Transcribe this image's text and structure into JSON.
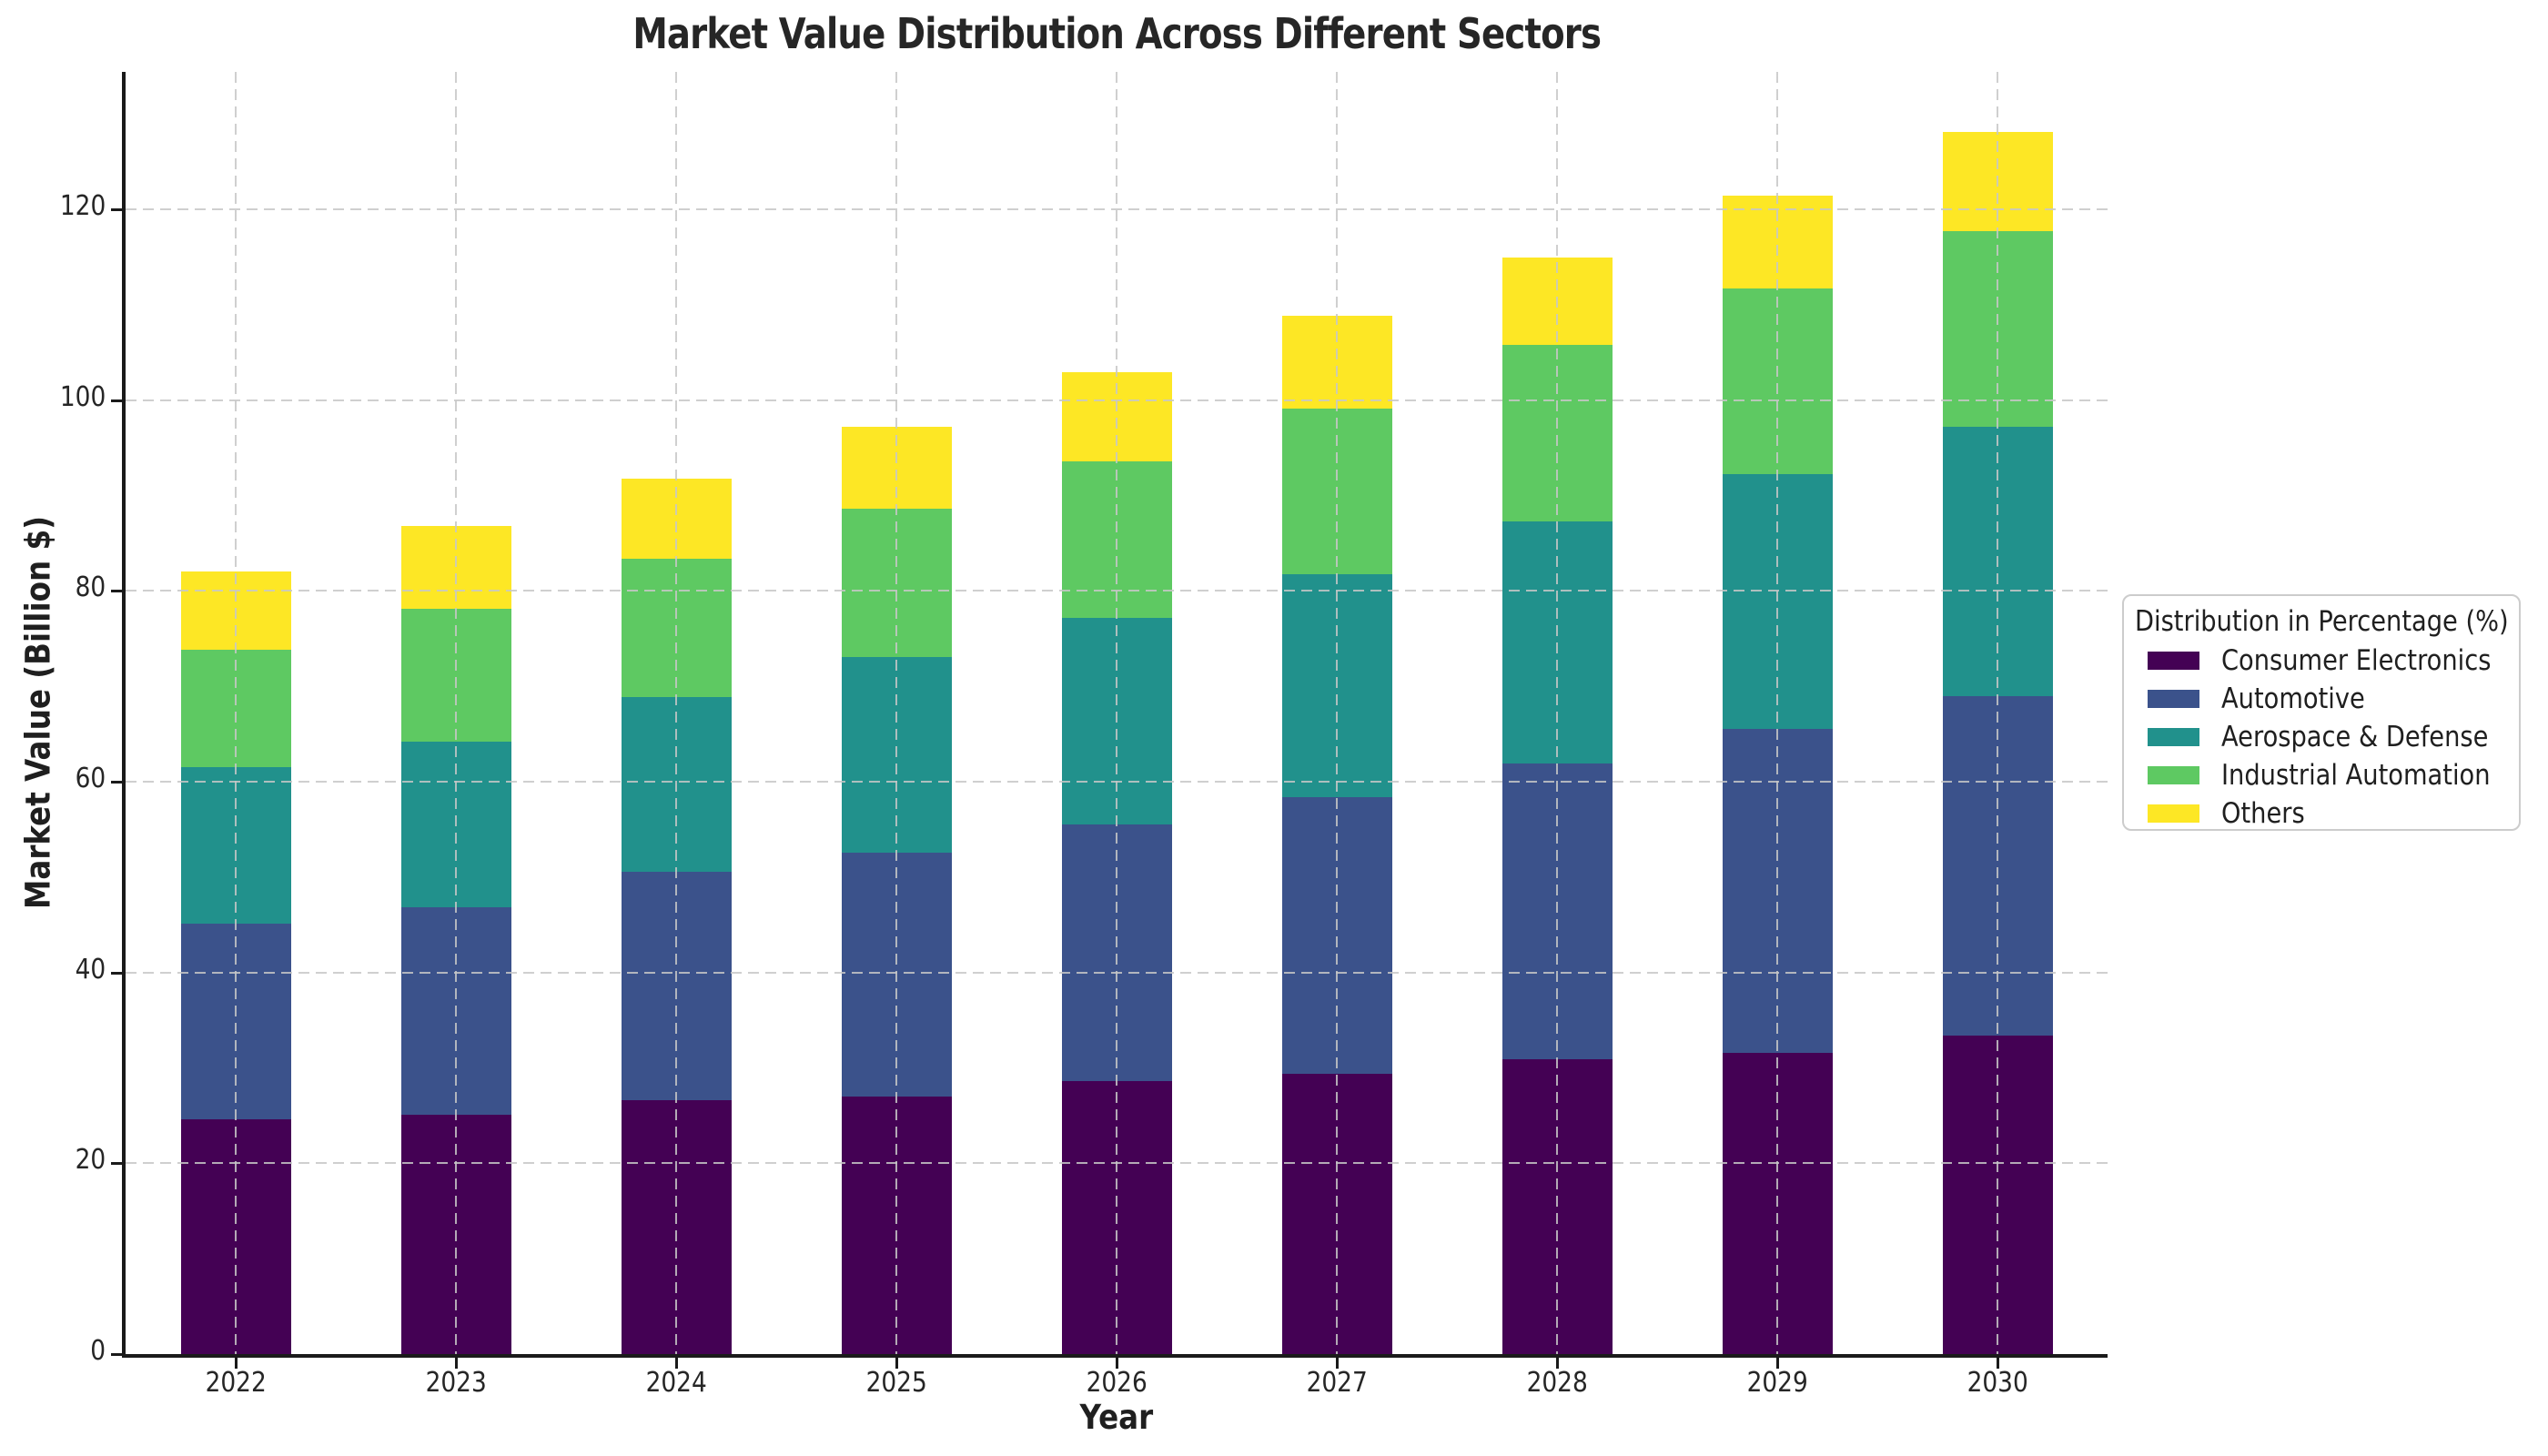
{
  "figure_title": "Market Value Distribution Across Different Sectors",
  "legend": {
    "title": "Distribution in Percentage (%)"
  },
  "chart_data": {
    "type": "bar",
    "stacked": true,
    "title": "Market Value Distribution Across Different Sectors",
    "xlabel": "Year",
    "ylabel": "Market Value (Billion $)",
    "categories": [
      "2022",
      "2023",
      "2024",
      "2025",
      "2026",
      "2027",
      "2028",
      "2029",
      "2030"
    ],
    "series": [
      {
        "name": "Consumer Electronics",
        "color": "#440154",
        "values": [
          24.6,
          25.1,
          26.6,
          27.0,
          28.6,
          29.4,
          30.9,
          31.6,
          33.4
        ]
      },
      {
        "name": "Automotive",
        "color": "#3b528b",
        "values": [
          20.5,
          21.7,
          24.0,
          25.6,
          26.9,
          29.0,
          31.0,
          33.9,
          35.6
        ]
      },
      {
        "name": "Aerospace & Defense",
        "color": "#21918c",
        "values": [
          16.4,
          17.4,
          18.3,
          20.5,
          21.7,
          23.3,
          25.4,
          26.7,
          28.2
        ]
      },
      {
        "name": "Industrial Automation",
        "color": "#5ec962",
        "values": [
          12.3,
          13.9,
          14.5,
          15.5,
          16.4,
          17.4,
          18.5,
          19.5,
          20.5
        ]
      },
      {
        "name": "Others",
        "color": "#fde725",
        "values": [
          8.2,
          8.7,
          8.4,
          8.6,
          9.3,
          9.7,
          9.1,
          9.7,
          10.4
        ]
      }
    ],
    "stack_totals": [
      82.0,
      86.8,
      91.8,
      97.2,
      102.9,
      108.8,
      114.9,
      121.4,
      128.1
    ],
    "yticks": [
      0,
      20,
      40,
      60,
      80,
      100,
      120
    ],
    "ylim": [
      0,
      134.4
    ],
    "grid": {
      "style": "dashed",
      "axes": "both",
      "color": "#cccccc",
      "drawn_above_bars": true
    },
    "legend_title": "Distribution in Percentage (%)",
    "legend_position": "center right, outside plot",
    "bar_width_fraction": 0.5
  }
}
